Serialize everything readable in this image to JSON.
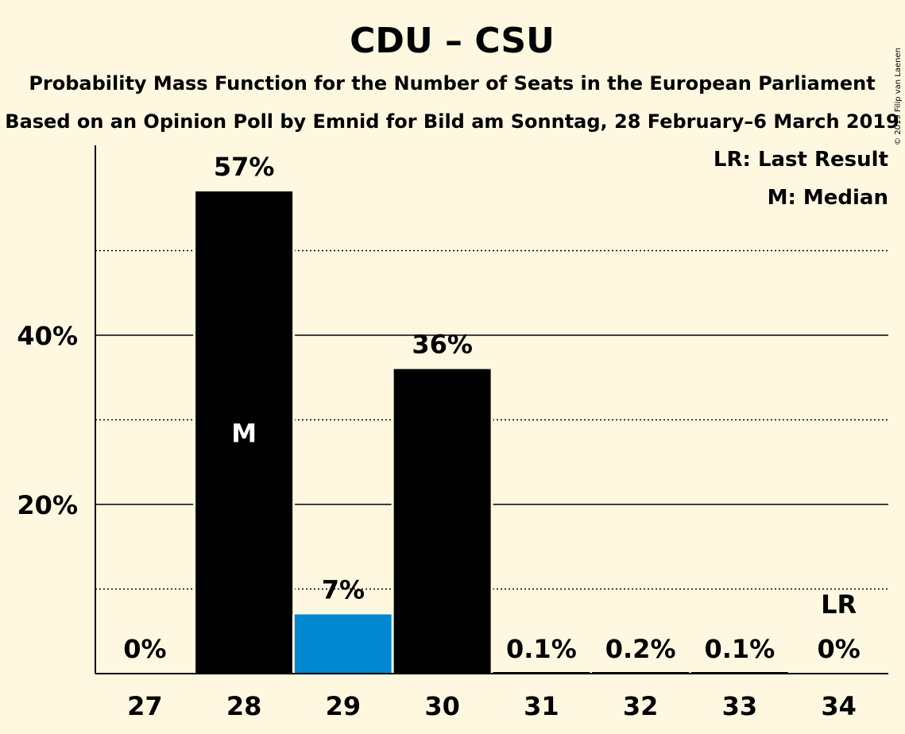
{
  "chart_data": {
    "type": "bar",
    "title": "CDU – CSU",
    "subtitle_1": "Probability Mass Function for the Number of Seats in the European Parliament",
    "subtitle_2": "Based on an Opinion Poll by Emnid for Bild am Sonntag, 28 February–6 March 2019",
    "copyright": "© 2019 Filip van Laenen",
    "legend": [
      "LR: Last Result",
      "M: Median"
    ],
    "legend_position": "top-right",
    "categories": [
      "27",
      "28",
      "29",
      "30",
      "31",
      "32",
      "33",
      "34"
    ],
    "values": [
      0,
      57,
      7,
      36,
      0.1,
      0.2,
      0.1,
      0
    ],
    "labels": [
      "0%",
      "57%",
      "7%",
      "36%",
      "0.1%",
      "0.2%",
      "0.1%",
      "0%"
    ],
    "bar_colors": [
      "#000000",
      "#000000",
      "#0087d0",
      "#000000",
      "#000000",
      "#000000",
      "#000000",
      "#000000"
    ],
    "median_category": "28",
    "median_marker": "M",
    "last_result_category": "34",
    "last_result_marker": "LR",
    "ylim": [
      0,
      62
    ],
    "y_ticks": [
      {
        "value": 20,
        "label": "20%"
      },
      {
        "value": 40,
        "label": "40%"
      }
    ],
    "minor_gridlines": [
      10,
      30,
      50
    ],
    "grid": true
  }
}
